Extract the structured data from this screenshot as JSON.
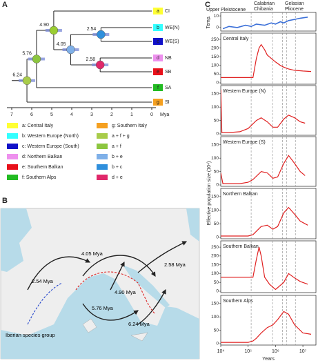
{
  "panel_a": {
    "label": "A",
    "nodes": [
      {
        "value": 6.24,
        "label": "6.24",
        "color": "#a8cc4a"
      },
      {
        "value": 5.76,
        "label": "5.76",
        "color": "#8cc63f"
      },
      {
        "value": 4.9,
        "label": "4.90",
        "color": "#9acd32"
      },
      {
        "value": 4.05,
        "label": "4.05",
        "color": "#7fb0e8"
      },
      {
        "value": 2.54,
        "label": "2.54",
        "color": "#2f8fdc"
      },
      {
        "value": 2.58,
        "label": "2.58",
        "color": "#e0286a"
      }
    ],
    "tips": [
      {
        "letter": "a",
        "code": "CI",
        "color": "#ffff33"
      },
      {
        "letter": "b",
        "code": "WE(N)",
        "color": "#33ffff"
      },
      {
        "letter": "c",
        "code": "WE(S)",
        "color": "#1010c8"
      },
      {
        "letter": "d",
        "code": "NB",
        "color": "#ee90ee"
      },
      {
        "letter": "e",
        "code": "SB",
        "color": "#e8101a"
      },
      {
        "letter": "f",
        "code": "SA",
        "color": "#22bb22"
      },
      {
        "letter": "g",
        "code": "SI",
        "color": "#f5a020"
      }
    ],
    "axis": {
      "ticks": [
        7,
        6,
        5,
        4,
        3,
        2,
        1,
        0
      ],
      "unit": "Mya"
    },
    "legend": [
      {
        "text": "a: Central Italy",
        "color": "#ffff33"
      },
      {
        "text": "b: Western Europe (North)",
        "color": "#33ffff"
      },
      {
        "text": "c: Western Europe (South)",
        "color": "#1010c8"
      },
      {
        "text": "d: Northern Balkan",
        "color": "#ee90ee"
      },
      {
        "text": "e: Southern Balkan",
        "color": "#e8101a"
      },
      {
        "text": "f: Southern Alps",
        "color": "#22bb22"
      },
      {
        "text": "g: Southern Italy",
        "color": "#f5a020"
      },
      {
        "text": "a + f + g",
        "color": "#a8cc4a"
      },
      {
        "text": "a + f",
        "color": "#8cc63f"
      },
      {
        "text": "b + e",
        "color": "#7fb0e8"
      },
      {
        "text": "b + c",
        "color": "#2f8fdc"
      },
      {
        "text": "d + e",
        "color": "#e0286a"
      }
    ]
  },
  "panel_b": {
    "label": "B",
    "annotations": [
      "4.05 Mya",
      "2.58 Mya",
      "4.90 Mya",
      "2.54 Mya",
      "5.76 Mya",
      "6.24 Mya",
      "Iberian species group"
    ]
  },
  "chart_data": {
    "type": "line",
    "label": "C",
    "xlog": true,
    "xlim": [
      10000,
      30000000
    ],
    "xticks": [
      {
        "value": 10000,
        "label": "10⁴"
      },
      {
        "value": 100000,
        "label": "10⁵"
      },
      {
        "value": 1000000,
        "label": "10⁶"
      },
      {
        "value": 10000000,
        "label": "10⁷"
      }
    ],
    "xlabel": "Years",
    "ylabel": "Effective population size (10⁴)",
    "color": "#e02020",
    "periods": [
      "Upper Pleistocene",
      "Calabrian",
      "Chibania",
      "Gelasian",
      "Pliocene"
    ],
    "boundaries": [
      129000,
      774000,
      1800000,
      2580000,
      5330000
    ],
    "temp": {
      "label": "Temp.",
      "color": "#3a6fd8",
      "ylim": [
        -3,
        13
      ],
      "yticks": [
        0,
        10
      ],
      "x": [
        12000,
        20000,
        40000,
        80000,
        130000,
        200000,
        400000,
        700000,
        1000000,
        1500000,
        2000000,
        3000000,
        5000000,
        8000000,
        15000000
      ],
      "values": [
        -1,
        1,
        0,
        2,
        1,
        3,
        2,
        4,
        3,
        5,
        4,
        6,
        7,
        8,
        9
      ]
    },
    "panels": [
      {
        "title": "Central Italy",
        "ylim": [
          0,
          270
        ],
        "yticks": [
          0,
          50,
          100,
          150,
          200,
          250
        ],
        "x": [
          10000,
          150000,
          200000,
          250000,
          300000,
          400000,
          500000,
          700000,
          1000000,
          1500000,
          2000000,
          3000000,
          5000000,
          10000000,
          20000000
        ],
        "values": [
          30,
          30,
          140,
          200,
          220,
          190,
          160,
          140,
          120,
          100,
          90,
          80,
          72,
          68,
          65
        ]
      },
      {
        "title": "Western Europe (N)",
        "ylim": [
          0,
          170
        ],
        "yticks": [
          0,
          50,
          100,
          150
        ],
        "x": [
          10000,
          11000,
          20000,
          50000,
          100000,
          200000,
          300000,
          500000,
          800000,
          1200000,
          2000000,
          3000000,
          5000000,
          8000000,
          12000000
        ],
        "values": [
          165,
          5,
          5,
          8,
          20,
          50,
          60,
          45,
          25,
          25,
          55,
          70,
          60,
          45,
          40
        ]
      },
      {
        "title": "Western Europe (S)",
        "ylim": [
          0,
          170
        ],
        "yticks": [
          0,
          50,
          100,
          150
        ],
        "x": [
          10000,
          12000,
          50000,
          100000,
          150000,
          300000,
          500000,
          800000,
          1200000,
          2000000,
          3000000,
          5000000,
          8000000,
          12000000
        ],
        "values": [
          45,
          5,
          5,
          10,
          20,
          50,
          45,
          25,
          30,
          80,
          110,
          80,
          50,
          35
        ]
      },
      {
        "title": "Northern Balkan",
        "ylim": [
          0,
          170
        ],
        "yticks": [
          0,
          50,
          100,
          150
        ],
        "x": [
          10000,
          50000,
          100000,
          150000,
          300000,
          500000,
          800000,
          1200000,
          2000000,
          3000000,
          5000000,
          8000000,
          15000000
        ],
        "values": [
          5,
          5,
          5,
          10,
          40,
          45,
          30,
          40,
          90,
          110,
          85,
          60,
          45
        ]
      },
      {
        "title": "Southern Balkan",
        "ylim": [
          0,
          270
        ],
        "yticks": [
          0,
          50,
          100,
          150,
          200,
          250
        ],
        "x": [
          10000,
          150000,
          200000,
          250000,
          300000,
          400000,
          600000,
          1000000,
          2000000,
          3000000,
          5000000,
          8000000,
          15000000
        ],
        "values": [
          80,
          80,
          180,
          250,
          200,
          80,
          40,
          10,
          50,
          100,
          75,
          55,
          40
        ]
      },
      {
        "title": "Southern Alps",
        "ylim": [
          0,
          170
        ],
        "yticks": [
          0,
          50,
          100,
          150
        ],
        "x": [
          10000,
          100000,
          150000,
          200000,
          300000,
          500000,
          800000,
          1200000,
          2000000,
          3000000,
          5000000,
          10000000,
          20000000
        ],
        "values": [
          5,
          5,
          10,
          20,
          40,
          60,
          70,
          90,
          120,
          110,
          70,
          40,
          35
        ]
      }
    ]
  }
}
